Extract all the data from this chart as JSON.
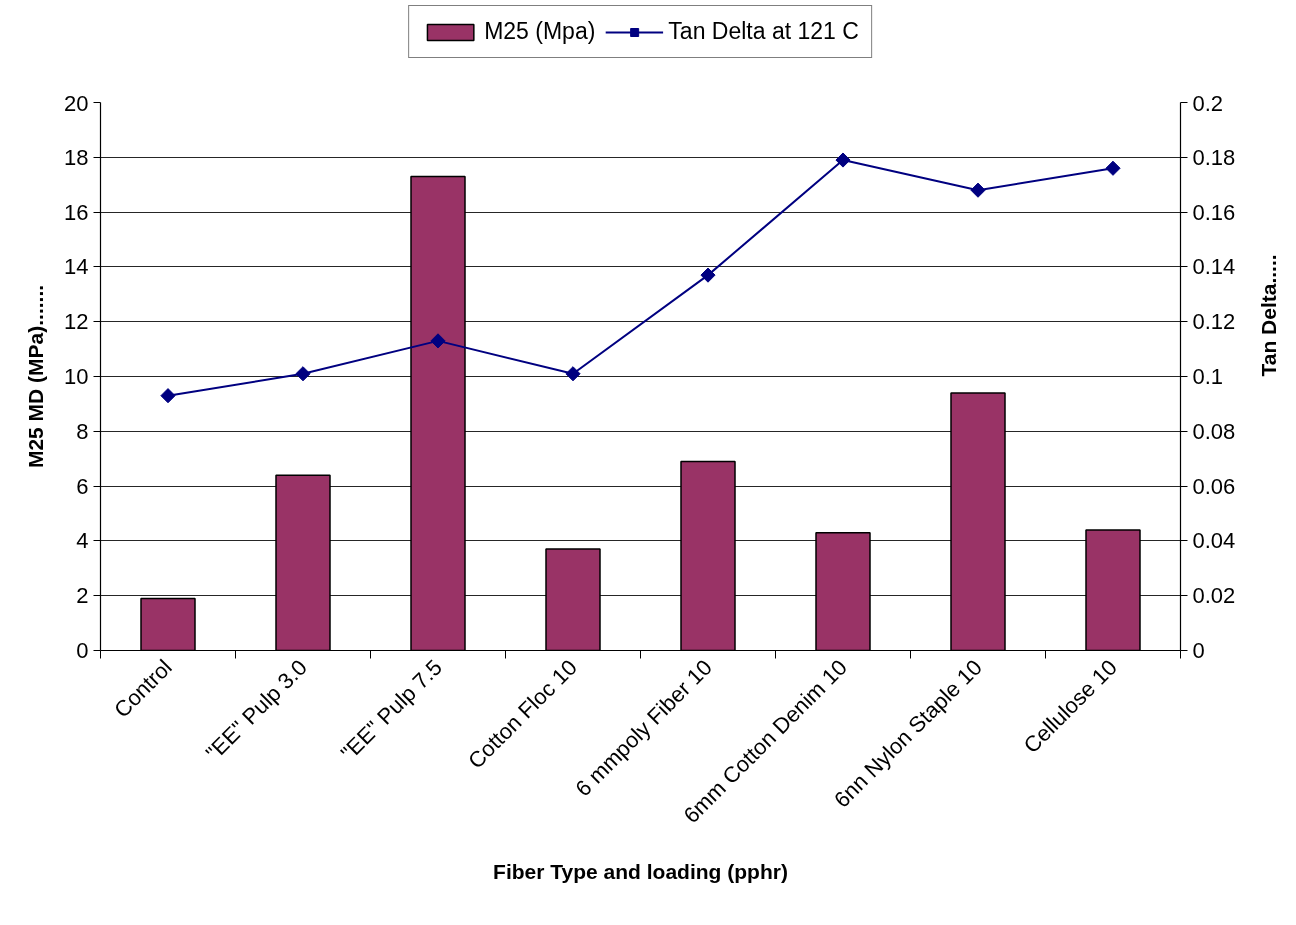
{
  "chart_data": {
    "type": "bar",
    "categories": [
      "Control",
      "\"EE\" Pulp 3.0",
      "\"EE\" Pulp 7.5",
      "Cotton Floc 10",
      "6 mmpoly Fiber 10",
      "6mm Cotton Denim 10",
      "6nn Nylon Staple 10",
      "Cellulose 10"
    ],
    "xlabel": "Fiber Type and loading (pphr)",
    "ylabel": "M25 MD (MPa).......",
    "y2label": "Tan Delta.....",
    "series": [
      {
        "name": "M25 (Mpa)",
        "color": "#993366",
        "values": [
          1.9,
          6.4,
          17.3,
          3.7,
          6.9,
          4.3,
          9.4,
          4.4
        ]
      },
      {
        "name": "Tan Delta at 121 C",
        "type": "line",
        "axis": "y2",
        "color": "#000080",
        "values": [
          0.093,
          0.101,
          0.113,
          0.101,
          0.137,
          0.179,
          0.168,
          0.176
        ]
      }
    ],
    "ylim": [
      0,
      20
    ],
    "yticks": [
      0,
      2,
      4,
      6,
      8,
      10,
      12,
      14,
      16,
      18,
      20
    ],
    "y2lim": [
      0,
      0.2
    ],
    "y2ticks": [
      0,
      0.02,
      0.04,
      0.06,
      0.08,
      0.1,
      0.12,
      0.14,
      0.16,
      0.18,
      0.2
    ],
    "grid": "y",
    "legend": "top",
    "marker": "diamond"
  }
}
